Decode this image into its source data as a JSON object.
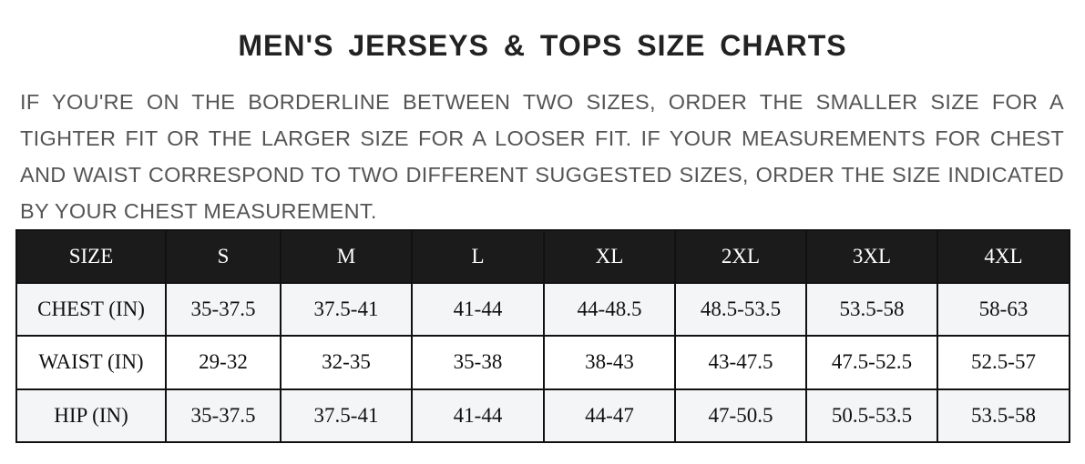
{
  "title": "MEN'S JERSEYS & TOPS SIZE CHARTS",
  "note": "IF YOU'RE ON THE BORDERLINE BETWEEN TWO SIZES, ORDER THE SMALLER SIZE FOR A TIGHTER FIT OR THE LARGER SIZE FOR A LOOSER FIT. IF YOUR MEASUREMENTS FOR CHEST AND WAIST CORRESPOND TO TWO DIFFERENT SUGGESTED SIZES, ORDER THE SIZE INDICATED BY YOUR CHEST MEASUREMENT.",
  "table": {
    "headers": [
      "SIZE",
      "S",
      "M",
      "L",
      "XL",
      "2XL",
      "3XL",
      "4XL"
    ],
    "rows": [
      [
        "CHEST (IN)",
        "35-37.5",
        "37.5-41",
        "41-44",
        "44-48.5",
        "48.5-53.5",
        "53.5-58",
        "58-63"
      ],
      [
        "WAIST (IN)",
        "29-32",
        "32-35",
        "35-38",
        "38-43",
        "43-47.5",
        "47.5-52.5",
        "52.5-57"
      ],
      [
        "HIP (IN)",
        "35-37.5",
        "37.5-41",
        "41-44",
        "44-47",
        "47-50.5",
        "50.5-53.5",
        "53.5-58"
      ]
    ]
  },
  "colors": {
    "header_bg": "#1b1b1b",
    "row_alt_bg": "#f4f5f7",
    "note_text": "#555555"
  }
}
